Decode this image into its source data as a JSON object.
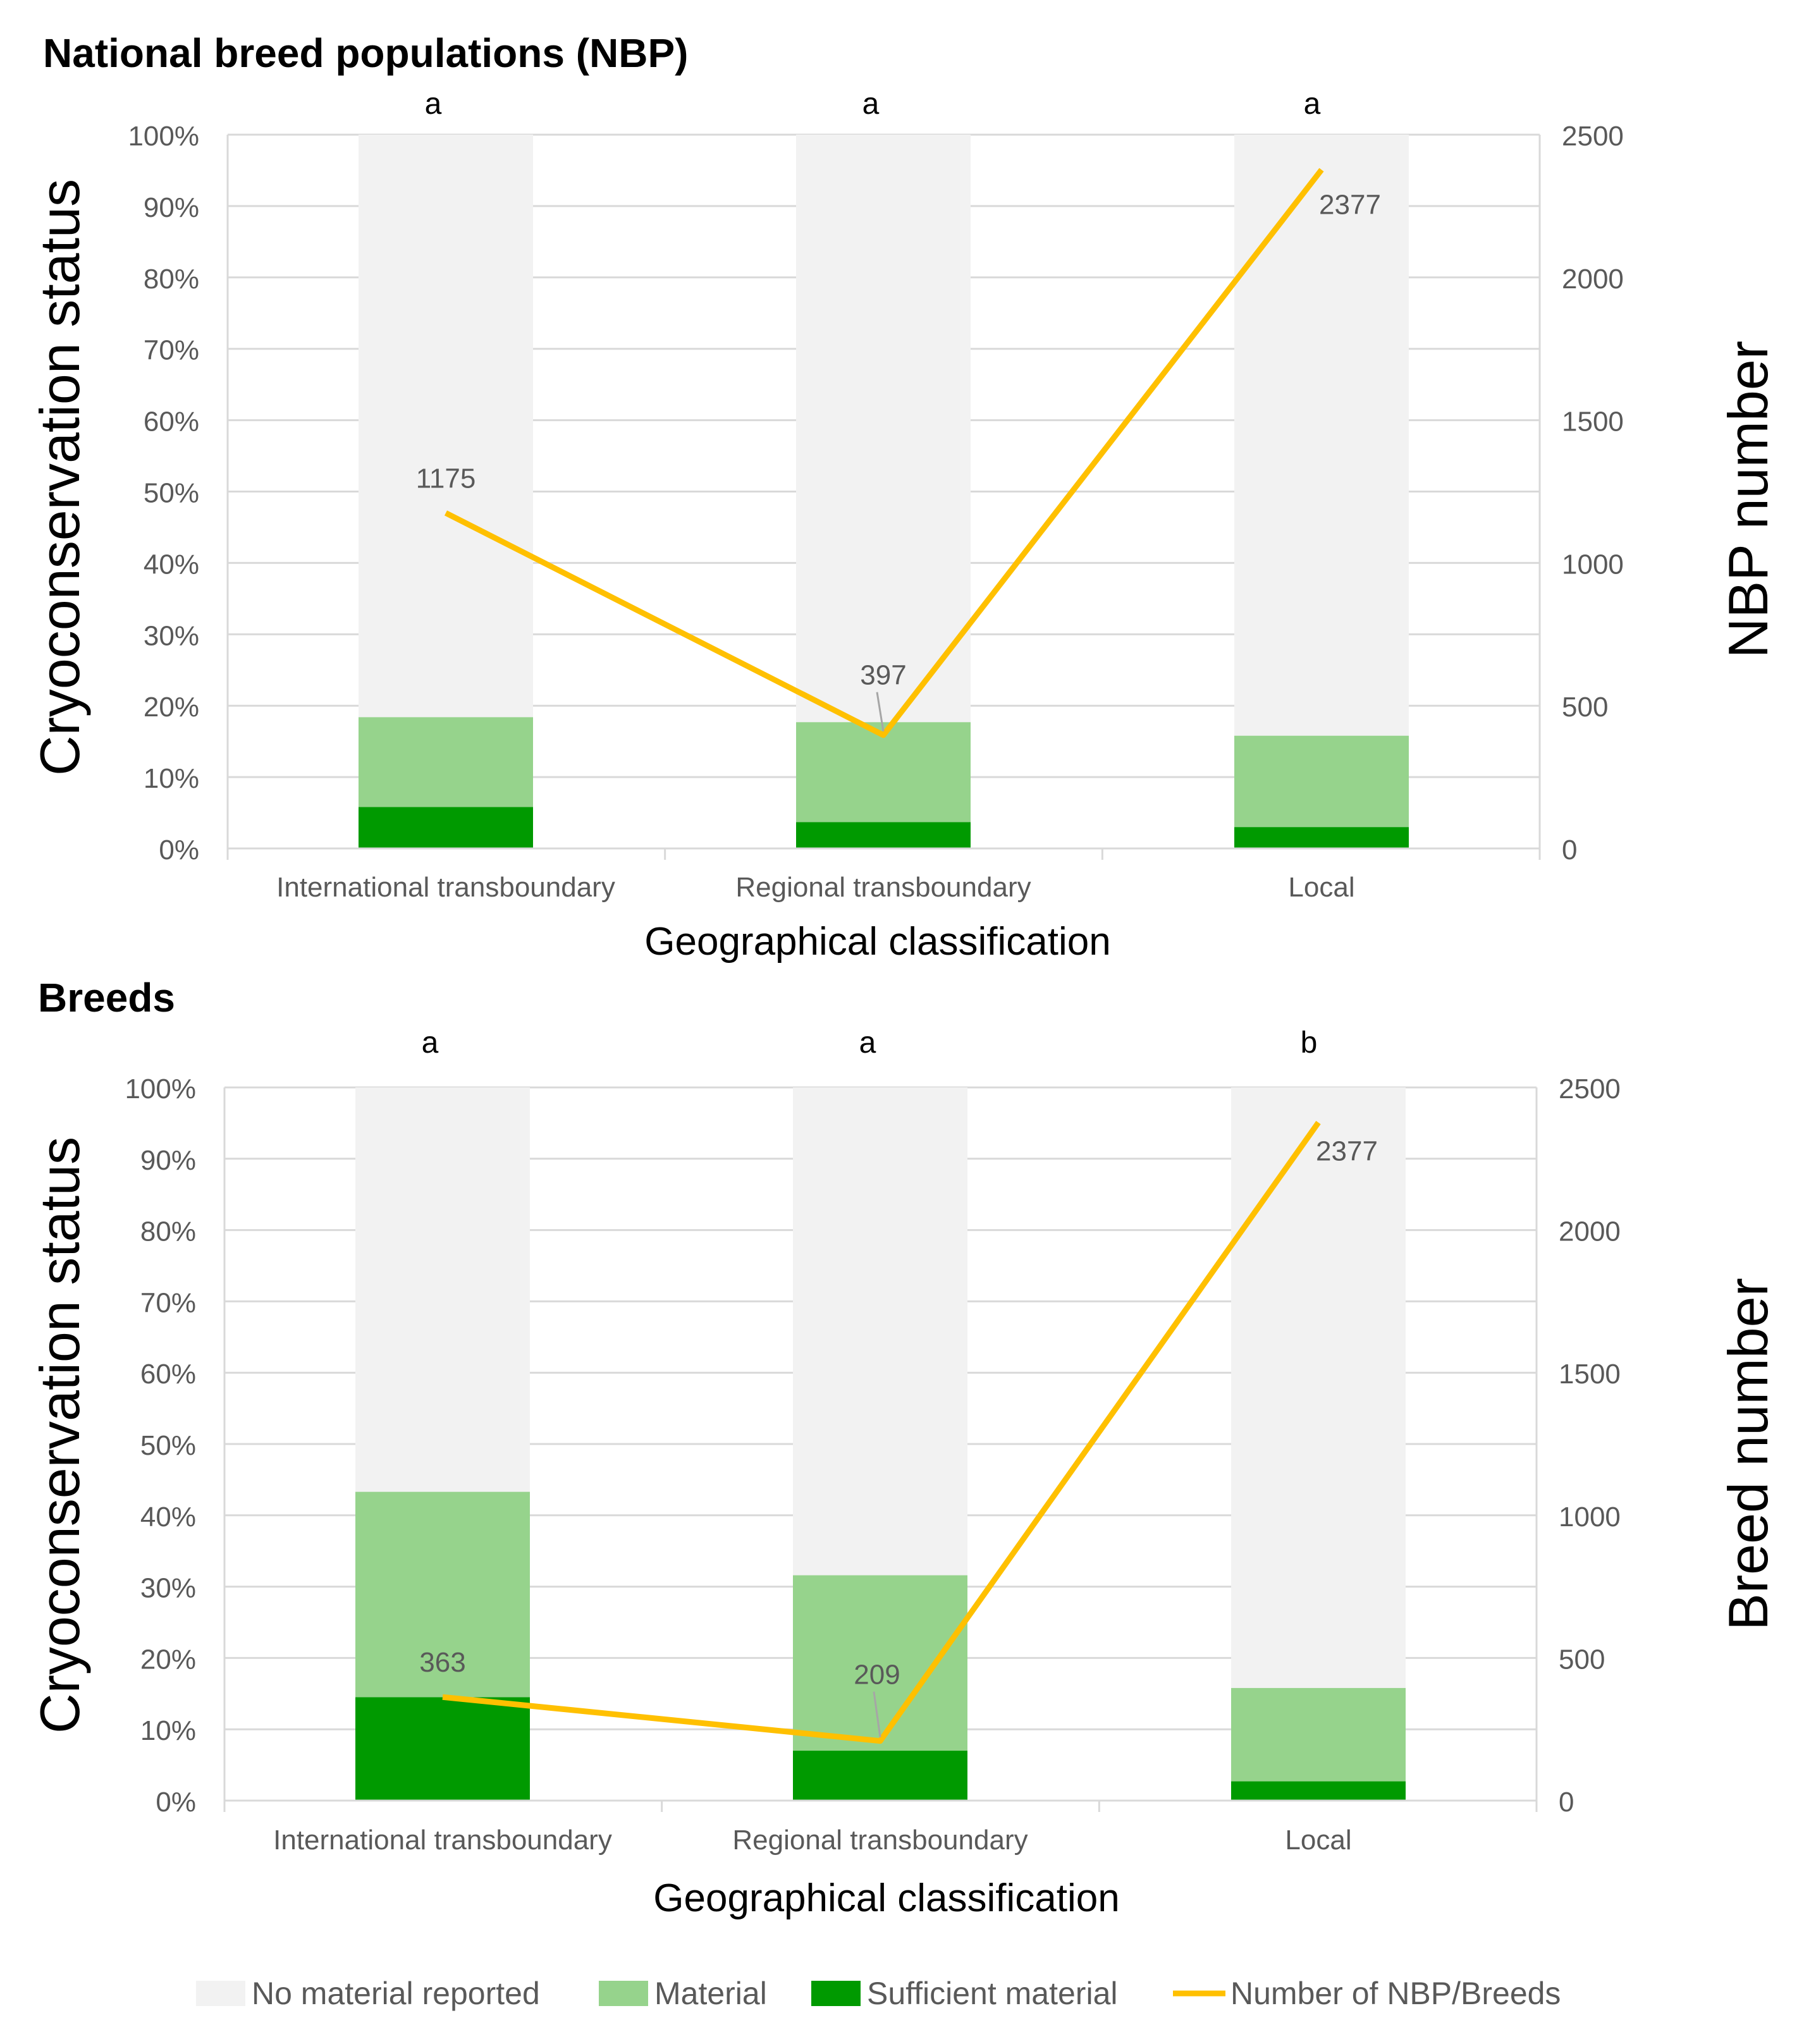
{
  "legend": {
    "no_material": "No material reported",
    "material": "Material",
    "sufficient": "Sufficient material",
    "line": "Number of NBP/Breeds"
  },
  "colors": {
    "no_material": "#f2f2f2",
    "material": "#96d38c",
    "sufficient": "#009a00",
    "line": "#ffc000",
    "axis_text": "#595959",
    "grid": "#d9d9d9"
  },
  "chart_data": [
    {
      "type": "bar",
      "stacked": true,
      "title": "National breed populations  (NBP)",
      "xlabel": "Geographical classification",
      "ylabel": "Cryoconservation status",
      "y2label": "NBP number",
      "categories": [
        "International transboundary",
        "Regional transboundary",
        "Local"
      ],
      "group_letters": [
        "a",
        "a",
        "a"
      ],
      "ylim": [
        0,
        100
      ],
      "yticks": [
        "0%",
        "10%",
        "20%",
        "30%",
        "40%",
        "50%",
        "60%",
        "70%",
        "80%",
        "90%",
        "100%"
      ],
      "y2lim": [
        0,
        2500
      ],
      "y2ticks": [
        "0",
        "500",
        "1000",
        "1500",
        "2000",
        "2500"
      ],
      "series": [
        {
          "name": "Sufficient material",
          "values": [
            5.8,
            3.7,
            3.0
          ]
        },
        {
          "name": "Material",
          "values": [
            12.6,
            14.0,
            12.8
          ]
        },
        {
          "name": "No material reported",
          "values": [
            81.6,
            82.3,
            84.2
          ]
        }
      ],
      "line": {
        "name": "Number of NBP/Breeds",
        "values": [
          1175,
          397,
          2377
        ],
        "labels": [
          "1175",
          "397",
          "2377"
        ]
      }
    },
    {
      "type": "bar",
      "stacked": true,
      "title": "Breeds",
      "xlabel": "Geographical classification",
      "ylabel": "Cryoconservation status",
      "y2label": "Breed number",
      "categories": [
        "International transboundary",
        "Regional transboundary",
        "Local"
      ],
      "group_letters": [
        "a",
        "a",
        "b"
      ],
      "ylim": [
        0,
        100
      ],
      "yticks": [
        "0%",
        "10%",
        "20%",
        "30%",
        "40%",
        "50%",
        "60%",
        "70%",
        "80%",
        "90%",
        "100%"
      ],
      "y2lim": [
        0,
        2500
      ],
      "y2ticks": [
        "0",
        "500",
        "1000",
        "1500",
        "2000",
        "2500"
      ],
      "series": [
        {
          "name": "Sufficient material",
          "values": [
            14.5,
            7.0,
            2.7
          ]
        },
        {
          "name": "Material",
          "values": [
            28.8,
            24.6,
            13.1
          ]
        },
        {
          "name": "No material reported",
          "values": [
            56.7,
            68.4,
            84.2
          ]
        }
      ],
      "line": {
        "name": "Number of NBP/Breeds",
        "values": [
          363,
          209,
          2377
        ],
        "labels": [
          "363",
          "209",
          "2377"
        ]
      }
    }
  ]
}
